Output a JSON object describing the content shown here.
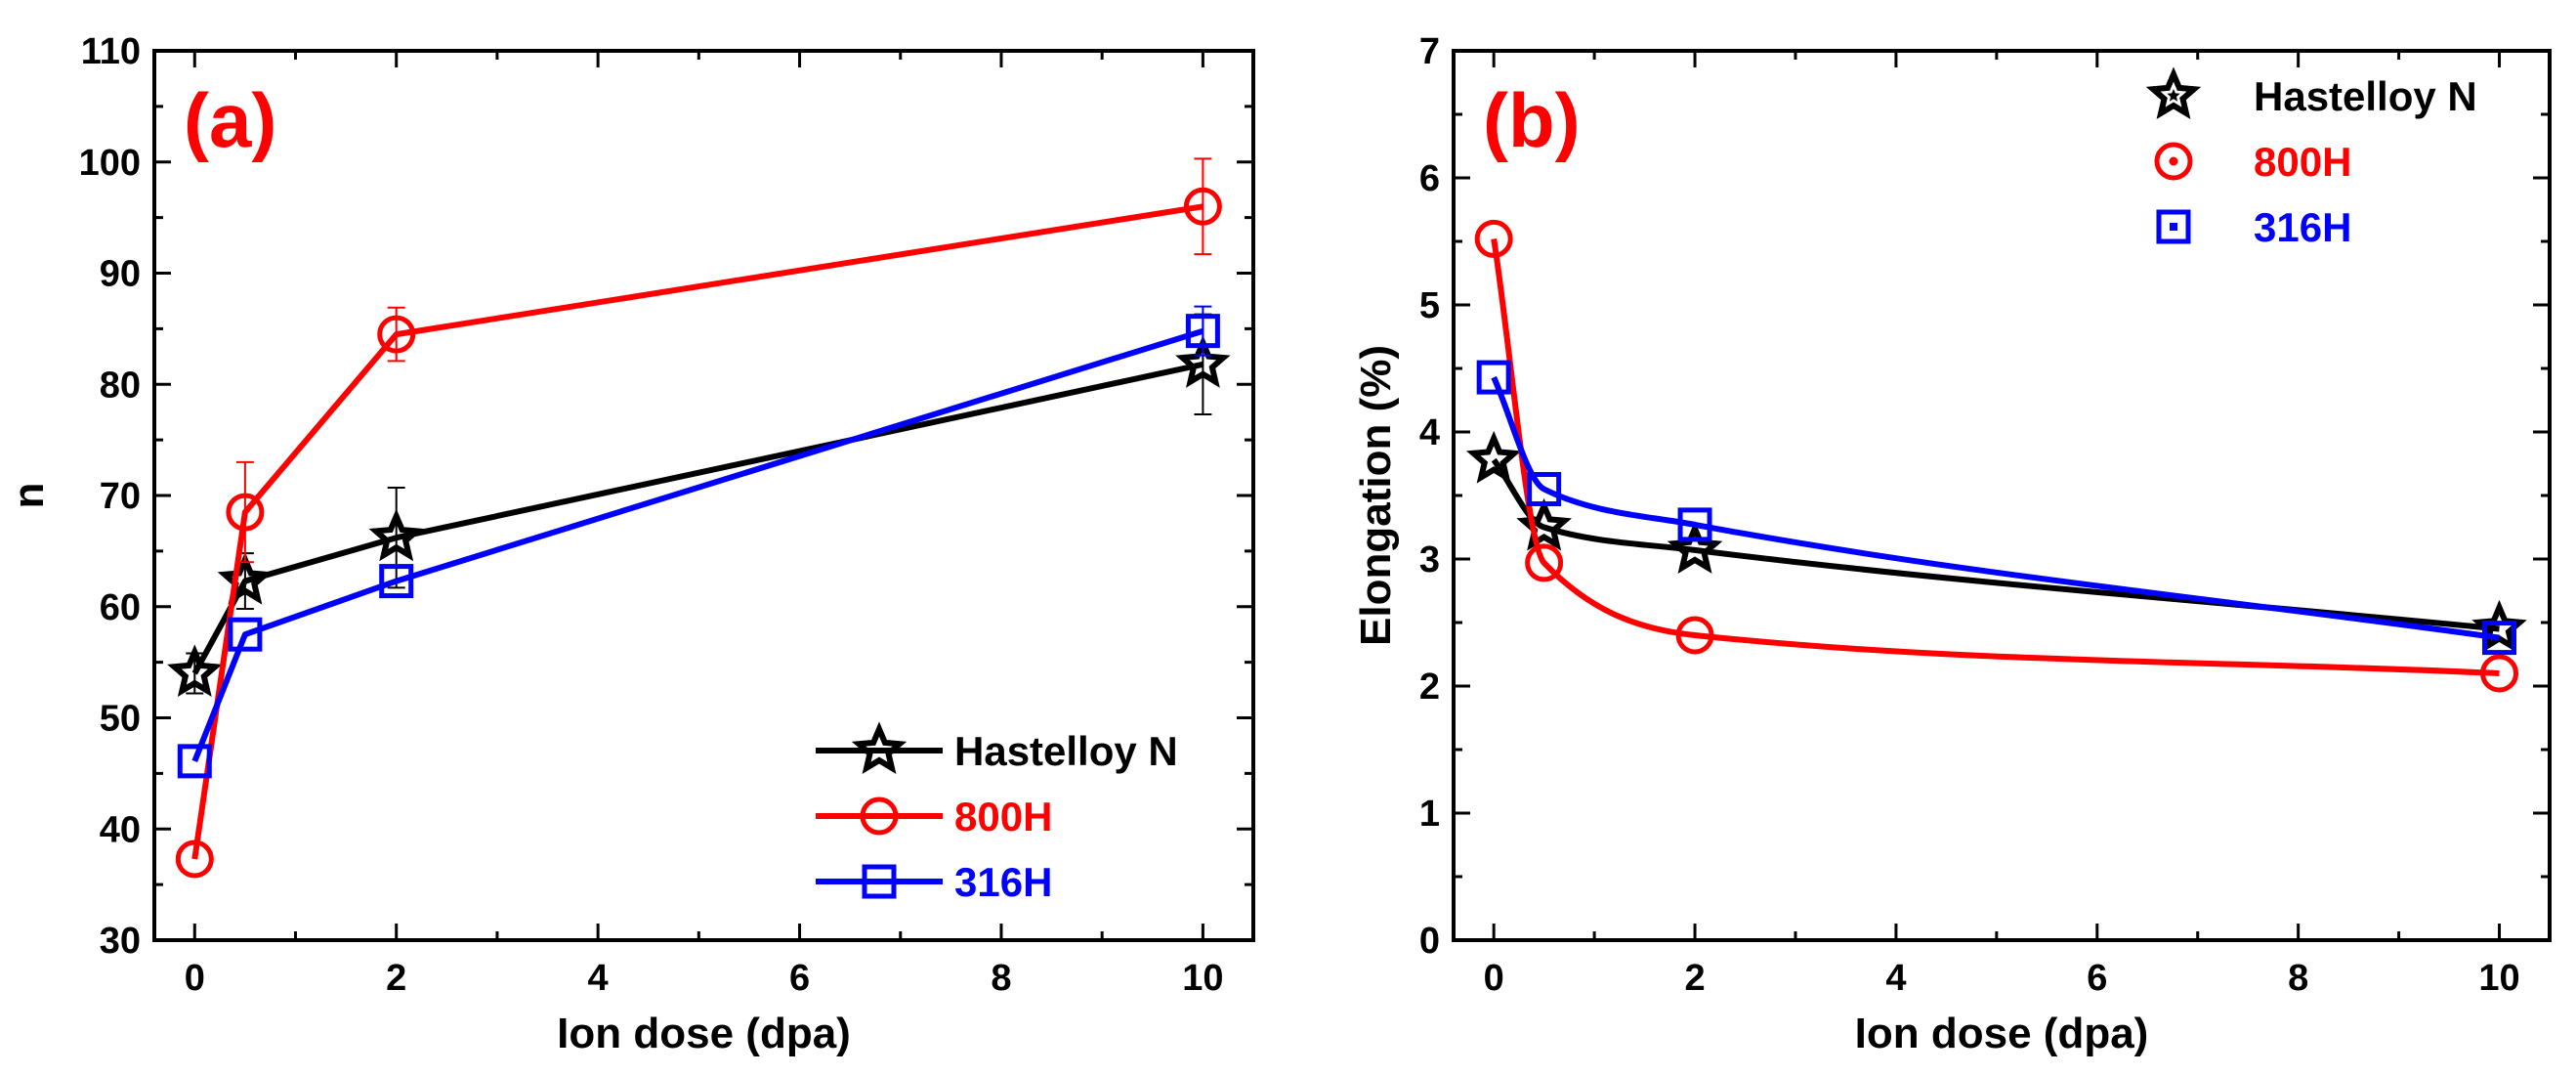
{
  "chart_data": [
    {
      "type": "line",
      "panel_label": "(a)",
      "xlabel": "Ion dose (dpa)",
      "ylabel": "n",
      "xlim": [
        -0.4,
        10.5
      ],
      "ylim": [
        30,
        110
      ],
      "xticks": [
        0,
        2,
        4,
        6,
        8,
        10
      ],
      "yticks": [
        30,
        40,
        50,
        60,
        70,
        80,
        90,
        100,
        110
      ],
      "legend_position": "bottom-right",
      "legend_style": "line",
      "series": [
        {
          "name": "Hastelloy N",
          "color": "#000000",
          "marker": "star",
          "curve": "linear",
          "x": [
            0,
            0.5,
            2,
            10
          ],
          "y": [
            54,
            62.3,
            66.2,
            81.8
          ],
          "err": [
            1.8,
            2.5,
            4.5,
            4.5
          ]
        },
        {
          "name": "800H",
          "color": "#ff0000",
          "marker": "circle",
          "curve": "linear",
          "x": [
            0,
            0.5,
            2,
            10
          ],
          "y": [
            37.3,
            68.5,
            84.5,
            96
          ],
          "err": [
            0,
            4.5,
            2.4,
            4.3
          ]
        },
        {
          "name": "316H",
          "color": "#0000ff",
          "marker": "square",
          "curve": "linear",
          "x": [
            0,
            0.5,
            2,
            10
          ],
          "y": [
            46.1,
            57.5,
            62.3,
            84.8
          ],
          "err": [
            0,
            0,
            0,
            2.2
          ]
        }
      ]
    },
    {
      "type": "line",
      "panel_label": "(b)",
      "xlabel": "Ion dose (dpa)",
      "ylabel": "Elongation (%)",
      "xlim": [
        -0.4,
        10.5
      ],
      "ylim": [
        0,
        7
      ],
      "xticks": [
        0,
        2,
        4,
        6,
        8,
        10
      ],
      "yticks": [
        0,
        1,
        2,
        3,
        4,
        5,
        6,
        7
      ],
      "legend_position": "top-right",
      "legend_style": "marker",
      "series": [
        {
          "name": "Hastelloy N",
          "color": "#000000",
          "marker": "star",
          "curve": "smooth",
          "x": [
            0,
            0.5,
            2,
            10
          ],
          "y": [
            3.78,
            3.25,
            3.07,
            2.45
          ],
          "err": [
            0,
            0,
            0,
            0
          ]
        },
        {
          "name": "800H",
          "color": "#ff0000",
          "marker": "circle",
          "curve": "smooth",
          "x": [
            0,
            0.5,
            2,
            10
          ],
          "y": [
            5.52,
            2.97,
            2.4,
            2.1
          ],
          "err": [
            0,
            0,
            0,
            0
          ]
        },
        {
          "name": "316H",
          "color": "#0000ff",
          "marker": "square",
          "curve": "smooth",
          "x": [
            0,
            0.5,
            2,
            10
          ],
          "y": [
            4.43,
            3.55,
            3.27,
            2.38
          ],
          "err": [
            0,
            0,
            0,
            0
          ]
        }
      ]
    }
  ]
}
